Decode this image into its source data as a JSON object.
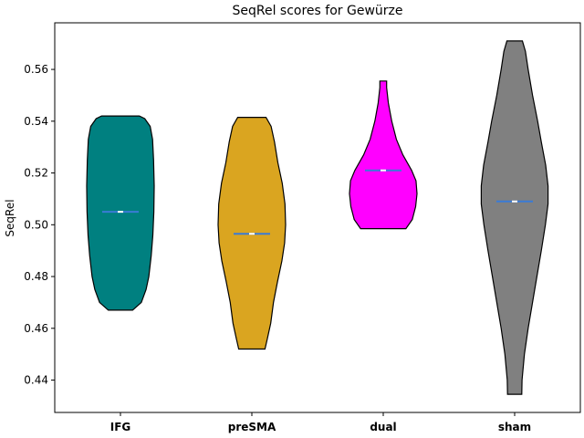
{
  "chart_data": {
    "type": "violin",
    "title": "SeqRel scores for Gewürze",
    "xlabel": "",
    "ylabel": "SeqRel",
    "ylim": [
      0.4275,
      0.578
    ],
    "yticks": [
      0.44,
      0.46,
      0.48,
      0.5,
      0.52,
      0.54,
      0.56
    ],
    "ytick_labels": [
      "0.44",
      "0.46",
      "0.48",
      "0.50",
      "0.52",
      "0.54",
      "0.56"
    ],
    "grid": false,
    "categories": [
      "IFG",
      "preSMA",
      "dual",
      "sham"
    ],
    "series": [
      {
        "category": "IFG",
        "color": "#008080",
        "min": 0.467,
        "max": 0.542,
        "median": 0.505,
        "mean": 0.505,
        "density": [
          [
            0.467,
            0.36
          ],
          [
            0.47,
            0.62
          ],
          [
            0.475,
            0.76
          ],
          [
            0.48,
            0.84
          ],
          [
            0.488,
            0.91
          ],
          [
            0.496,
            0.96
          ],
          [
            0.505,
            0.99
          ],
          [
            0.515,
            1.0
          ],
          [
            0.525,
            0.98
          ],
          [
            0.533,
            0.95
          ],
          [
            0.538,
            0.88
          ],
          [
            0.541,
            0.72
          ],
          [
            0.542,
            0.56
          ]
        ]
      },
      {
        "category": "preSMA",
        "color": "#DAA520",
        "min": 0.452,
        "max": 0.5415,
        "median": 0.4965,
        "mean": 0.4965,
        "density": [
          [
            0.452,
            0.39
          ],
          [
            0.456,
            0.46
          ],
          [
            0.462,
            0.56
          ],
          [
            0.47,
            0.64
          ],
          [
            0.478,
            0.76
          ],
          [
            0.486,
            0.89
          ],
          [
            0.493,
            0.97
          ],
          [
            0.5,
            1.0
          ],
          [
            0.508,
            0.98
          ],
          [
            0.516,
            0.9
          ],
          [
            0.524,
            0.77
          ],
          [
            0.532,
            0.67
          ],
          [
            0.538,
            0.57
          ],
          [
            0.5415,
            0.42
          ]
        ]
      },
      {
        "category": "dual",
        "color": "#FF00FF",
        "min": 0.4985,
        "max": 0.5555,
        "median": 0.521,
        "mean": 0.521,
        "density": [
          [
            0.4985,
            0.67
          ],
          [
            0.502,
            0.86
          ],
          [
            0.507,
            0.96
          ],
          [
            0.512,
            1.0
          ],
          [
            0.517,
            0.97
          ],
          [
            0.521,
            0.84
          ],
          [
            0.527,
            0.58
          ],
          [
            0.533,
            0.39
          ],
          [
            0.54,
            0.25
          ],
          [
            0.547,
            0.15
          ],
          [
            0.553,
            0.1
          ],
          [
            0.5555,
            0.1
          ]
        ]
      },
      {
        "category": "sham",
        "color": "#808080",
        "min": 0.4345,
        "max": 0.571,
        "median": 0.509,
        "mean": 0.509,
        "density": [
          [
            0.4345,
            0.21
          ],
          [
            0.44,
            0.22
          ],
          [
            0.45,
            0.29
          ],
          [
            0.46,
            0.4
          ],
          [
            0.47,
            0.53
          ],
          [
            0.48,
            0.66
          ],
          [
            0.49,
            0.79
          ],
          [
            0.5,
            0.91
          ],
          [
            0.508,
            0.99
          ],
          [
            0.515,
            0.99
          ],
          [
            0.523,
            0.92
          ],
          [
            0.532,
            0.79
          ],
          [
            0.54,
            0.68
          ],
          [
            0.55,
            0.53
          ],
          [
            0.56,
            0.4
          ],
          [
            0.567,
            0.32
          ],
          [
            0.571,
            0.23
          ]
        ]
      }
    ]
  }
}
